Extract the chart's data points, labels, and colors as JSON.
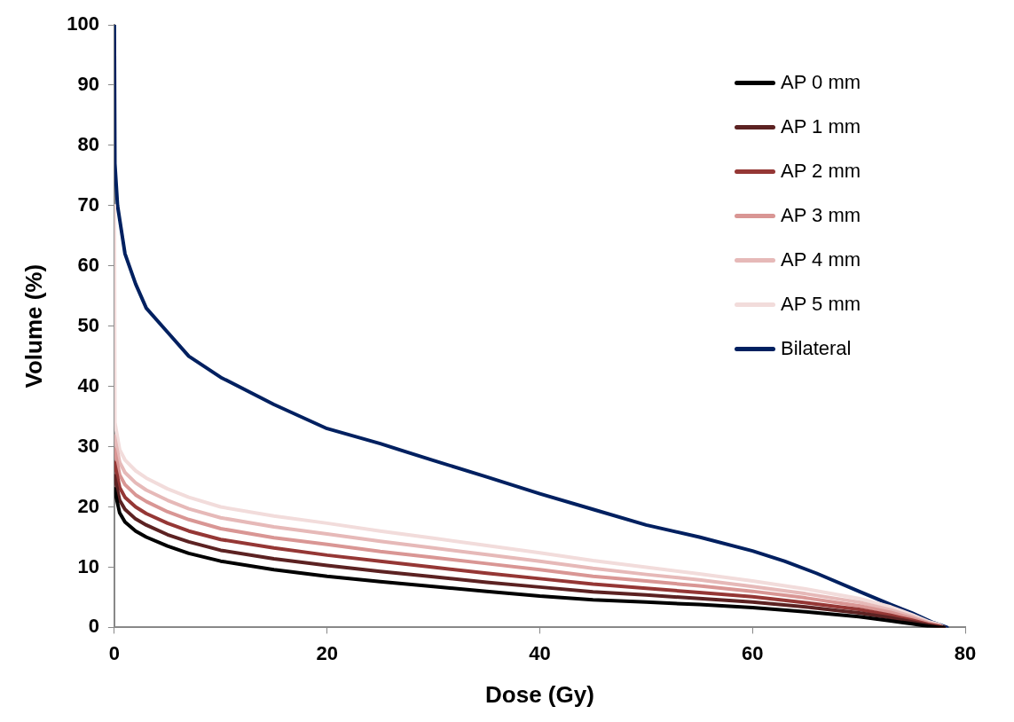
{
  "chart_data": {
    "type": "line",
    "xlabel": "Dose (Gy)",
    "ylabel": "Volume (%)",
    "xlim": [
      0,
      80
    ],
    "xticks": [
      0,
      20,
      40,
      60,
      80
    ],
    "ylim": [
      0,
      100
    ],
    "yticks": [
      0,
      10,
      20,
      30,
      40,
      50,
      60,
      70,
      80,
      90,
      100
    ],
    "grid": false,
    "legend": "top right",
    "marker": "none",
    "line_style": "solid",
    "x": [
      0,
      0.5,
      1,
      2,
      3,
      5,
      7,
      10,
      15,
      20,
      25,
      30,
      35,
      40,
      45,
      50,
      55,
      60,
      65,
      70,
      73,
      75,
      76.5,
      77.5,
      78
    ],
    "series": [
      {
        "name": "AP 0 mm",
        "color": "#000000",
        "values": [
          23,
          19,
          17.5,
          16,
          15,
          13.5,
          12.3,
          11,
          9.6,
          8.5,
          7.6,
          6.8,
          6,
          5.2,
          4.6,
          4.2,
          3.8,
          3.3,
          2.6,
          1.8,
          1.1,
          0.6,
          0.2,
          0,
          0
        ]
      },
      {
        "name": "AP 1 mm",
        "color": "#5c2222",
        "values": [
          25.2,
          21.1,
          19.6,
          18,
          17,
          15.4,
          14.2,
          12.8,
          11.4,
          10.3,
          9.3,
          8.4,
          7.5,
          6.7,
          5.9,
          5.4,
          4.8,
          4.2,
          3.4,
          2.4,
          1.6,
          0.9,
          0.4,
          0.1,
          0
        ]
      },
      {
        "name": "AP 2 mm",
        "color": "#953735",
        "values": [
          27.4,
          23.2,
          21.6,
          20,
          18.9,
          17.3,
          16,
          14.6,
          13.2,
          12,
          11,
          10,
          9,
          8.1,
          7.2,
          6.5,
          5.8,
          5.1,
          4.1,
          3,
          2,
          1.2,
          0.5,
          0.2,
          0
        ]
      },
      {
        "name": "AP 3 mm",
        "color": "#d99694",
        "values": [
          29.6,
          25.3,
          23.7,
          22,
          20.9,
          19.2,
          17.9,
          16.4,
          14.9,
          13.8,
          12.6,
          11.6,
          10.6,
          9.6,
          8.5,
          7.7,
          6.9,
          6,
          4.9,
          3.6,
          2.5,
          1.5,
          0.7,
          0.3,
          0
        ]
      },
      {
        "name": "AP 4 mm",
        "color": "#e6b9b8",
        "values": [
          31.8,
          27.4,
          25.7,
          24,
          22.8,
          21.1,
          19.7,
          18.2,
          16.7,
          15.5,
          14.3,
          13.2,
          12.1,
          11,
          9.8,
          8.8,
          7.9,
          6.8,
          5.6,
          4.2,
          2.9,
          1.8,
          0.8,
          0.4,
          0
        ]
      },
      {
        "name": "AP 5 mm",
        "color": "#f2dcdb",
        "x": [
          0,
          0.05,
          0.5,
          1,
          2,
          3,
          5,
          7,
          10,
          15,
          20,
          25,
          30,
          35,
          40,
          45,
          50,
          55,
          60,
          65,
          70,
          73,
          75,
          76.5,
          77.5,
          78
        ],
        "values": [
          70,
          34,
          29.5,
          27.8,
          26,
          24.8,
          23,
          21.6,
          20,
          18.5,
          17.3,
          16,
          14.8,
          13.6,
          12.4,
          11.1,
          10,
          8.9,
          7.7,
          6.4,
          4.8,
          3.4,
          2.1,
          1,
          0.5,
          0
        ]
      },
      {
        "name": "Bilateral",
        "color": "#002060",
        "x": [
          0,
          0.05,
          0.3,
          1,
          2,
          3,
          5,
          7,
          10,
          15,
          20,
          25,
          30,
          35,
          40,
          45,
          50,
          55,
          60,
          63,
          66,
          70,
          73,
          75,
          77,
          78.3
        ],
        "values": [
          100,
          77,
          70,
          62,
          57,
          53,
          49,
          45,
          41.5,
          37,
          33,
          30.5,
          27.7,
          25,
          22.2,
          19.6,
          17,
          15,
          12.7,
          11,
          9,
          6,
          3.8,
          2.4,
          0.8,
          0
        ]
      }
    ]
  }
}
